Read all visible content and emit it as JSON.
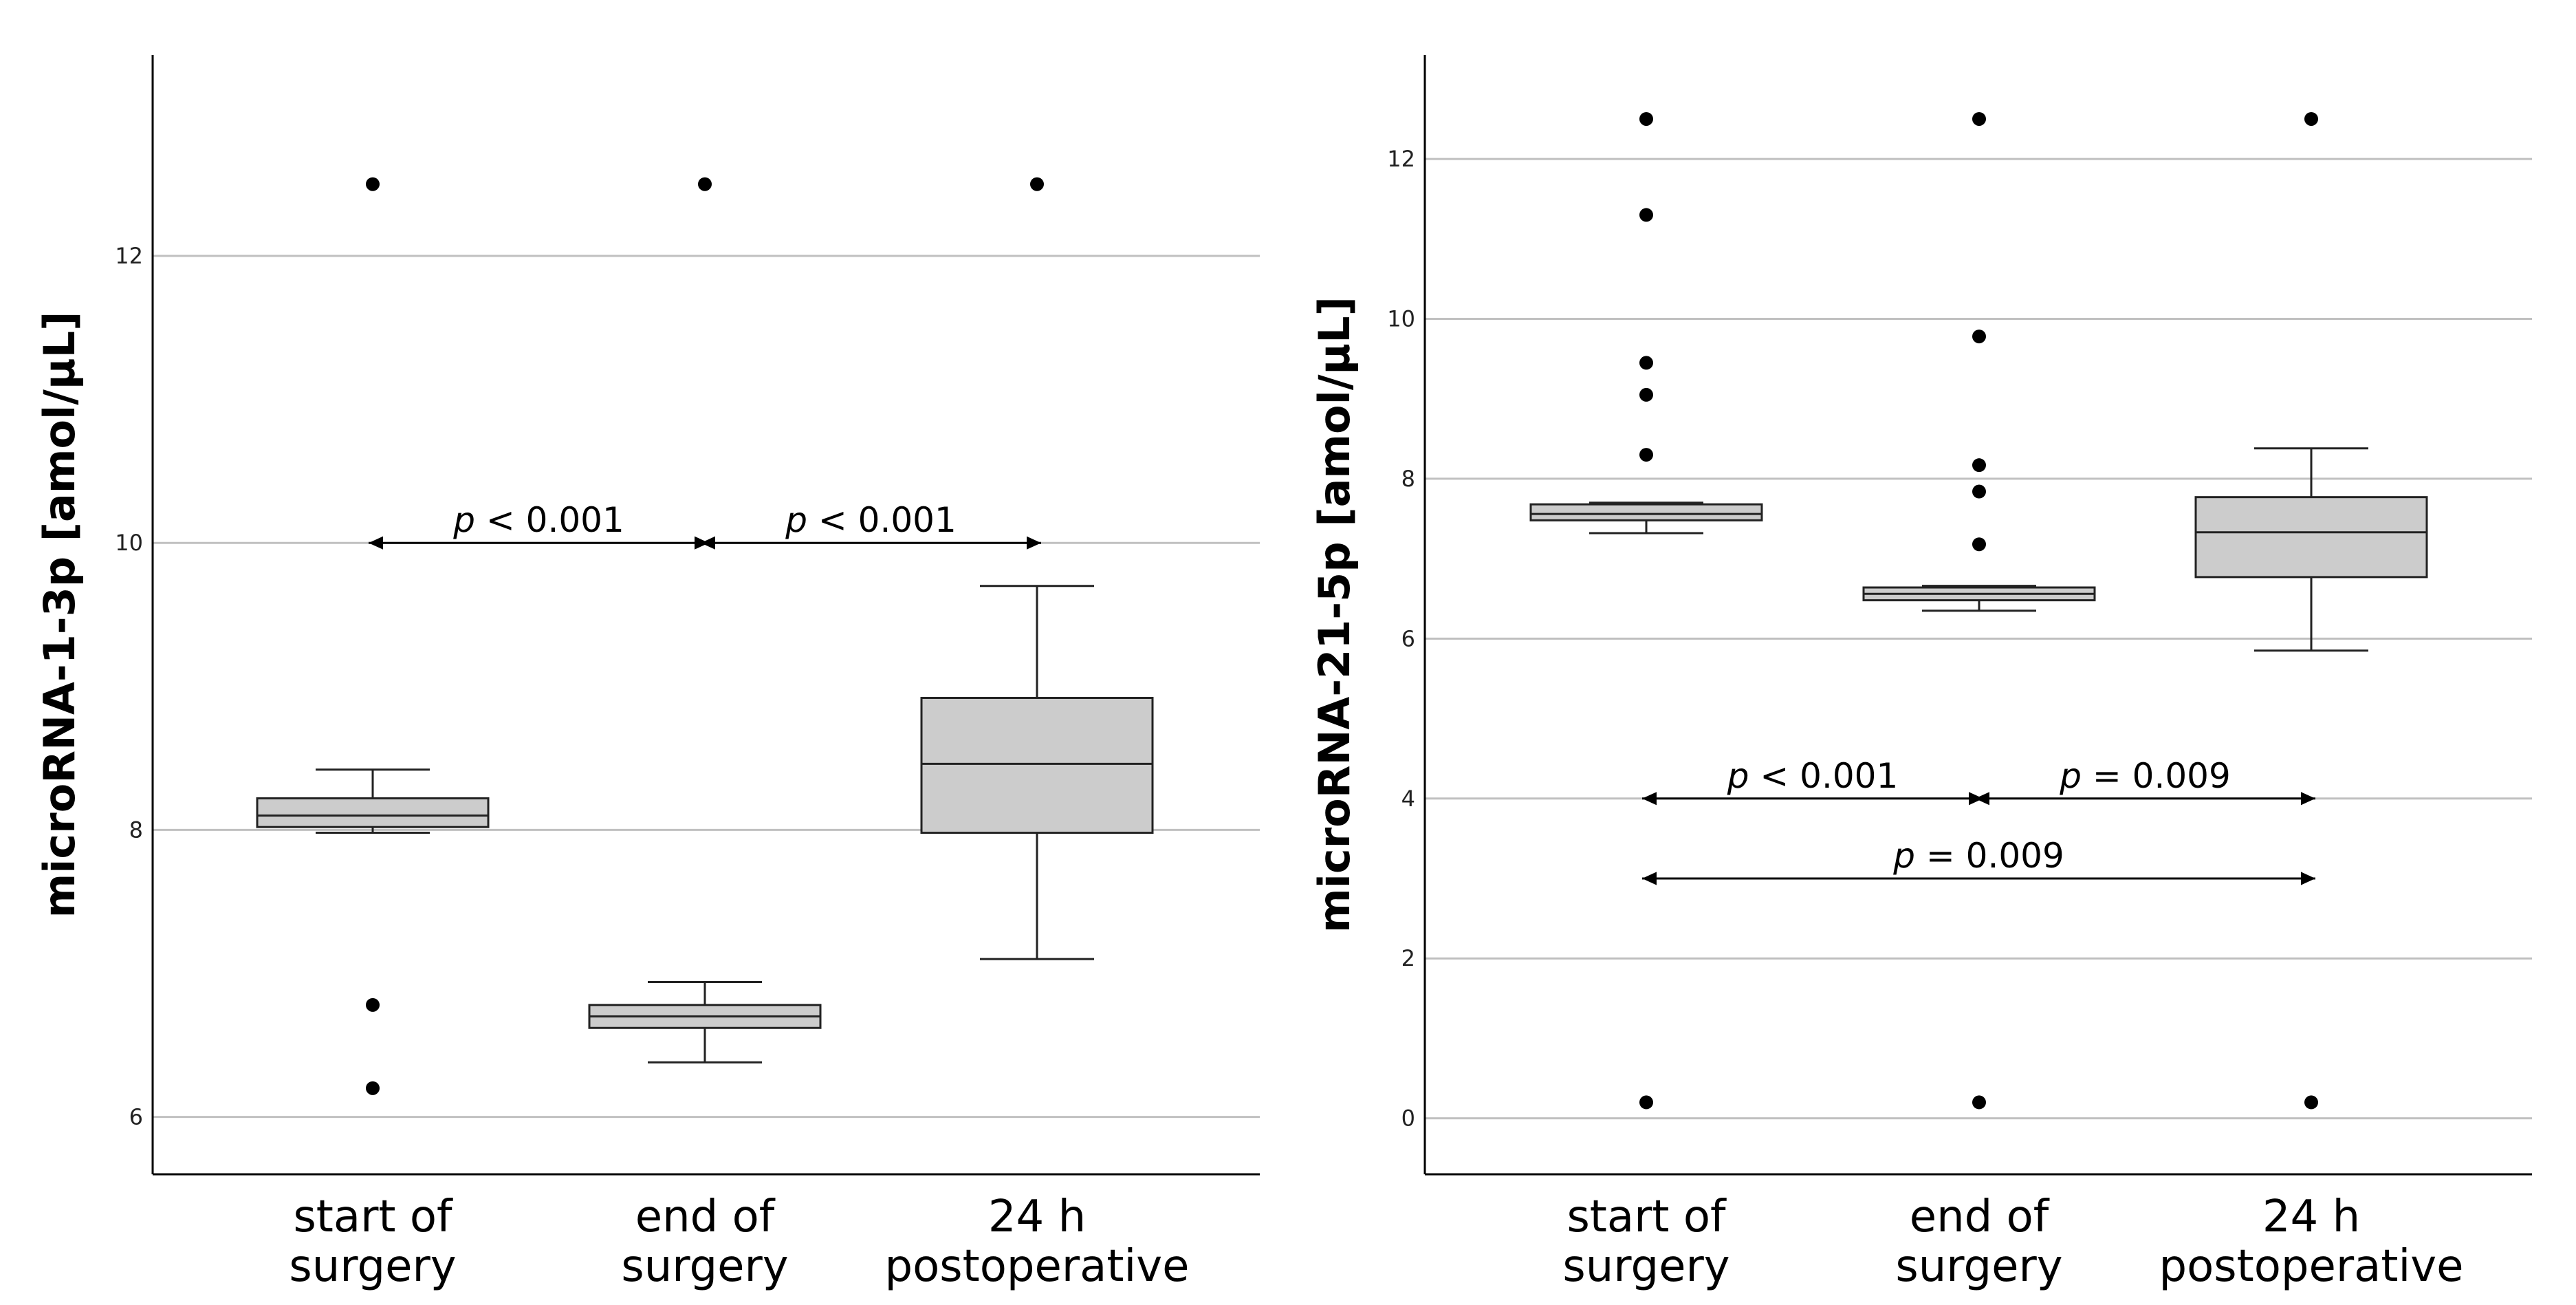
{
  "chart_data": [
    {
      "type": "box",
      "ylabel": "microRNA-1-3p [amol/µL]",
      "categories": [
        [
          "start of",
          "surgery"
        ],
        [
          "end of",
          "surgery"
        ],
        [
          "24 h",
          "postoperative"
        ]
      ],
      "ylim": [
        5.6,
        13.4
      ],
      "yticks": [
        6,
        8,
        10,
        12
      ],
      "grid": true,
      "box_color": "#cccccc",
      "boxes": [
        {
          "whisker_low": 7.98,
          "q1": 8.02,
          "median": 8.1,
          "q3": 8.22,
          "whisker_high": 8.42,
          "outliers": [
            12.5,
            6.78,
            6.2
          ]
        },
        {
          "whisker_low": 6.38,
          "q1": 6.62,
          "median": 6.7,
          "q3": 6.78,
          "whisker_high": 6.94,
          "outliers": [
            12.5
          ]
        },
        {
          "whisker_low": 7.1,
          "q1": 7.98,
          "median": 8.46,
          "q3": 8.92,
          "whisker_high": 9.7,
          "outliers": [
            12.5
          ]
        }
      ],
      "annotations": [
        {
          "from": 0,
          "to": 1,
          "y": 10.0,
          "var": "p",
          "rest": " < 0.001"
        },
        {
          "from": 1,
          "to": 2,
          "y": 10.0,
          "var": "p",
          "rest": " < 0.001"
        }
      ]
    },
    {
      "type": "box",
      "ylabel": "microRNA-21-5p [amol/µL]",
      "categories": [
        [
          "start of",
          "surgery"
        ],
        [
          "end of",
          "surgery"
        ],
        [
          "24 h",
          "postoperative"
        ]
      ],
      "ylim": [
        -0.7,
        13.3
      ],
      "yticks": [
        0,
        2,
        4,
        6,
        8,
        10,
        12
      ],
      "grid": true,
      "box_color": "#cccccc",
      "boxes": [
        {
          "whisker_low": 7.32,
          "q1": 7.48,
          "median": 7.56,
          "q3": 7.68,
          "whisker_high": 7.7,
          "outliers": [
            12.5,
            11.3,
            9.45,
            9.05,
            8.3,
            0.2
          ]
        },
        {
          "whisker_low": 6.35,
          "q1": 6.48,
          "median": 6.56,
          "q3": 6.64,
          "whisker_high": 6.66,
          "outliers": [
            12.5,
            9.78,
            8.17,
            7.84,
            7.18,
            0.2
          ]
        },
        {
          "whisker_low": 5.85,
          "q1": 6.77,
          "median": 7.33,
          "q3": 7.77,
          "whisker_high": 8.38,
          "outliers": [
            12.5,
            0.2
          ]
        }
      ],
      "annotations": [
        {
          "from": 0,
          "to": 1,
          "y": 4.0,
          "var": "p",
          "rest": " < 0.001"
        },
        {
          "from": 1,
          "to": 2,
          "y": 4.0,
          "var": "p",
          "rest": " = 0.009"
        },
        {
          "from": 0,
          "to": 2,
          "y": 3.0,
          "var": "p",
          "rest": " = 0.009"
        }
      ]
    }
  ]
}
